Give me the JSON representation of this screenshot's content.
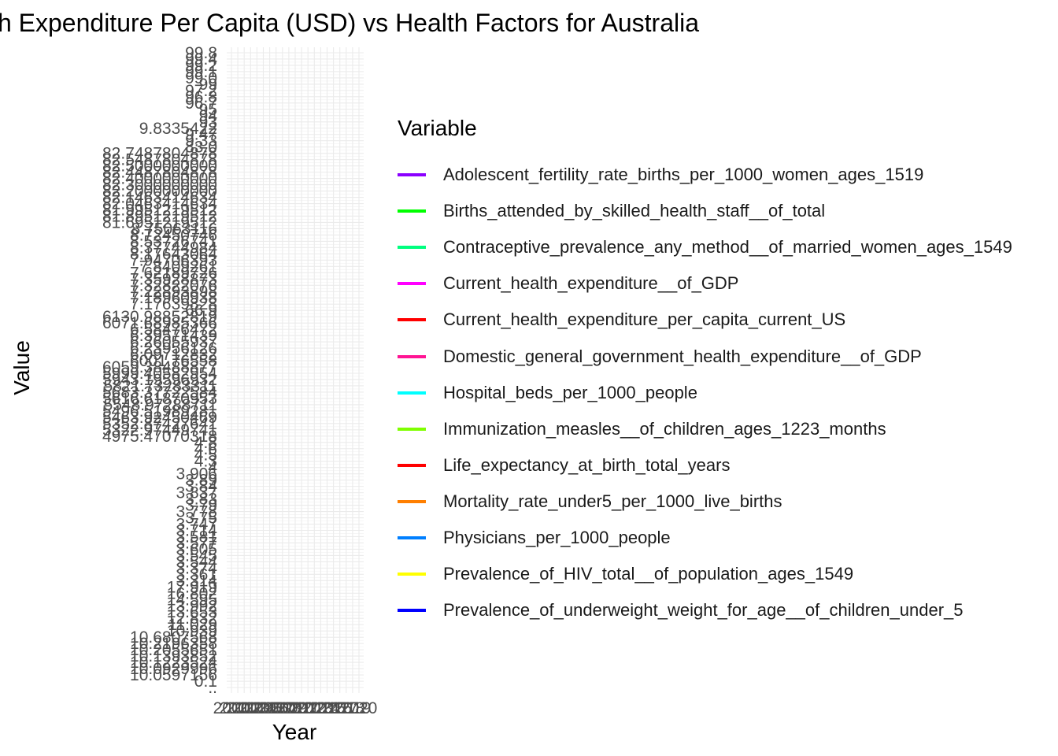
{
  "chart_data": {
    "type": "line",
    "title": "Current Health Expenditure Per Capita (USD) vs Health Factors for Australia",
    "xlabel": "Year",
    "ylabel": "Value",
    "grid": true,
    "legend_placement": "right",
    "legend_title": "Variable",
    "x_ticks": [
      "2000",
      "2001",
      "2002",
      "2003",
      "2004",
      "2005",
      "2006",
      "2007",
      "2008",
      "2009",
      "2010",
      "2011",
      "2012",
      "2013",
      "2014",
      "2015",
      "2016",
      "2017",
      "2018",
      "2019",
      "2020"
    ],
    "y_ticks": [
      "..",
      "0.1",
      "10.0597156",
      "10.0929996",
      "10.1223524",
      "10.1393852",
      "10.2055651",
      "10.2196358",
      "10.6807568",
      "10.939",
      "11.029",
      "12.832",
      "13.653",
      "13.992",
      "14.595",
      "16.802",
      "17.919",
      "3.314",
      "3.361",
      "3.374",
      "3.544",
      "3.545",
      "3.605",
      "3.577",
      "3.581",
      "3.714",
      "3.747",
      "3.75",
      "3.778",
      "3.79",
      "3.83",
      "3.837",
      "3.84",
      "3.89",
      "3.906",
      "4",
      "4.3",
      "4.5",
      "4.6",
      "4.8",
      "4975.47070318",
      "5322.97449741",
      "5352.87427641",
      "5463.92450469",
      "5496.51989281",
      "5548.97288711",
      "5616.61870953",
      "5683.37722584",
      "5821.73283311",
      "5943.19596932",
      "5999.40582954",
      "6059.38488877",
      "6001.76558",
      "6.09712832",
      "6.23956126",
      "6.26055937",
      "6.39571439",
      "6.58476472",
      "6071.68985366",
      "6130.98852819",
      "66.9",
      "7.17639828",
      "7.18960938",
      "7.22893898",
      "7.32822076",
      "7.35928873",
      "7.62189726",
      "7.8409261",
      "7.94706393",
      "8.17643064",
      "8.37744984",
      "8.53726741",
      "8.72450746",
      "8.75063116",
      "81.6951219512",
      "81.8951219512",
      "81.9951219512",
      "82.0463414634",
      "82.1463414634",
      "82.2000000000",
      "82.3000000000",
      "82.4000000000",
      "82.4487804878",
      "82.5000000000",
      "82.5487804878",
      "82.7487804878",
      "83.0",
      "9.33",
      "9.47",
      "9.8335422",
      "93",
      "94",
      "95",
      "96.7",
      "96.8",
      "97.2",
      "99",
      "99.0",
      "99.1",
      "99.2",
      "99.4",
      "99.8"
    ],
    "series": [
      {
        "name": "Adolescent_fertility_rate_births_per_1000_women_ages_1519",
        "color": "#8B00FF",
        "values": []
      },
      {
        "name": "Births_attended_by_skilled_health_staff__of_total",
        "color": "#00FF00",
        "values": []
      },
      {
        "name": "Contraceptive_prevalence_any_method__of_married_women_ages_1549",
        "color": "#00FF7F",
        "values": []
      },
      {
        "name": "Current_health_expenditure__of_GDP",
        "color": "#FF00FF",
        "values": []
      },
      {
        "name": "Current_health_expenditure_per_capita_current_US",
        "color": "#FF0000",
        "values": []
      },
      {
        "name": "Domestic_general_government_health_expenditure__of_GDP",
        "color": "#FF1493",
        "values": []
      },
      {
        "name": "Hospital_beds_per_1000_people",
        "color": "#00FFFF",
        "values": []
      },
      {
        "name": "Immunization_measles__of_children_ages_1223_months",
        "color": "#7FFF00",
        "values": []
      },
      {
        "name": "Life_expectancy_at_birth_total_years",
        "color": "#FF0000",
        "values": []
      },
      {
        "name": "Mortality_rate_under5_per_1000_live_births",
        "color": "#FF7F00",
        "values": []
      },
      {
        "name": "Physicians_per_1000_people",
        "color": "#007FFF",
        "values": []
      },
      {
        "name": "Prevalence_of_HIV_total__of_population_ages_1549",
        "color": "#FFFF00",
        "values": []
      },
      {
        "name": "Prevalence_of_underweight_weight_for_age__of_children_under_5",
        "color": "#0000FF",
        "values": []
      }
    ]
  }
}
